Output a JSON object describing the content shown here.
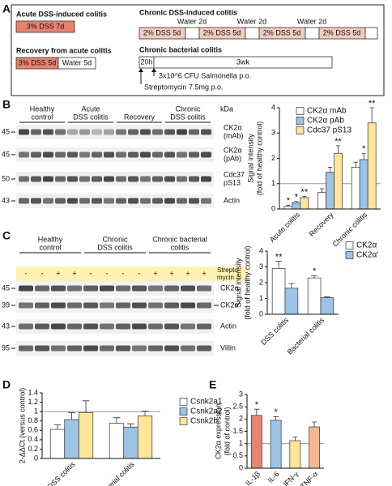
{
  "panel_labels": [
    "A",
    "B",
    "C",
    "D",
    "E"
  ],
  "schematic": {
    "acute": {
      "title": "Acute DSS-induced colitis",
      "steps": [
        "3% DSS 7d"
      ]
    },
    "recovery": {
      "title": "Recovery from acute colitis",
      "steps": [
        "3% DSS 5d",
        "Water 5d"
      ]
    },
    "chronic_dss": {
      "title": "Chronic DSS-induced colitis",
      "steps": [
        "2% DSS 5d",
        "Water 2d",
        "2% DSS 5d",
        "Water 2d",
        "2% DSS 5d",
        "Water 2d",
        "2% DSS 5d"
      ]
    },
    "bacterial": {
      "title": "Chronic bacterial colitis",
      "steps": [
        "20h",
        "3wk"
      ],
      "infection": "3x10^6 CFU Salmonella p.o.",
      "pretreatment": "Streptomycin 7.5mg p.o."
    }
  },
  "blots": [
    {
      "kda": "kDa",
      "groups": [
        [
          "Healthy",
          "control"
        ],
        [
          "Acute",
          "DSS colitis"
        ],
        [
          "Recovery"
        ],
        [
          "Chronic",
          "DSS colitis"
        ]
      ],
      "markers": [
        45,
        45,
        50,
        43
      ],
      "proteins": [
        [
          "CK2α",
          "(mAb)"
        ],
        [
          "CK2α",
          "(pAb)"
        ],
        [
          "Cdc37",
          "pS13"
        ],
        [
          "Actin"
        ]
      ]
    },
    {
      "groups": [
        [
          "Healthy",
          "control"
        ],
        [
          "Chronic",
          "DSS colitis"
        ],
        [
          "Chronic bacterial",
          "colitis"
        ]
      ],
      "treatment_label": [
        "Strepto-",
        "mycin"
      ],
      "treatment": [
        "-",
        "-",
        "+",
        "+",
        "-",
        "-",
        "-",
        "-",
        "+",
        "+",
        "+",
        "+"
      ],
      "markers": [
        45,
        39,
        43,
        95
      ],
      "proteins": [
        [
          "CK2α"
        ],
        [
          "CK2α'"
        ],
        [
          "Actin"
        ],
        [
          "Villin"
        ]
      ]
    }
  ],
  "chart_data": [
    {
      "type": "bar",
      "ylabel": [
        "Signal intensity",
        "(fold of healthy control)"
      ],
      "categories": [
        "Acute colitis",
        "Recovery",
        "Chronic colitis"
      ],
      "ylim": [
        0,
        4
      ],
      "yticks": [
        0,
        1,
        2,
        3,
        4
      ],
      "reference_line": 1,
      "series": [
        {
          "name": "CK2α mAb",
          "color": "#ffffff",
          "values": [
            0.1,
            0.65,
            1.65
          ],
          "errors": [
            0.05,
            0.15,
            0.2
          ],
          "significance": [
            "*",
            null,
            null
          ]
        },
        {
          "name": "CK2α pAb",
          "color": "#9dc3e6",
          "values": [
            0.25,
            1.45,
            1.95
          ],
          "errors": [
            0.05,
            0.2,
            0.25
          ],
          "significance": [
            "*",
            null,
            "*"
          ]
        },
        {
          "name": "Cdc37 pS13",
          "color": "#ffe699",
          "values": [
            0.45,
            2.2,
            3.4
          ],
          "errors": [
            0.05,
            0.3,
            0.6
          ],
          "significance": [
            "**",
            "**",
            "**"
          ]
        }
      ]
    },
    {
      "type": "bar",
      "ylabel": [
        "Signal intensity",
        "(fold of healthy control)"
      ],
      "categories": [
        "DSS colitis",
        "Bacterial colitis"
      ],
      "ylim": [
        0,
        4
      ],
      "yticks": [
        0,
        1,
        2,
        3,
        4
      ],
      "series": [
        {
          "name": "CK2α",
          "color": "#ffffff",
          "values": [
            2.9,
            2.3
          ],
          "errors": [
            0.45,
            0.15
          ],
          "significance": [
            "**",
            "*"
          ]
        },
        {
          "name": "CK2α'",
          "color": "#9dc3e6",
          "values": [
            1.65,
            1.05
          ],
          "errors": [
            0.3,
            0.05
          ],
          "significance": [
            null,
            null
          ]
        }
      ]
    },
    {
      "type": "bar",
      "ylabel": [
        "2-ΔΔCt (versus control)"
      ],
      "categories": [
        "DSS colitis",
        "Bacterial colitis"
      ],
      "ylim": [
        0,
        1.4
      ],
      "yticks": [
        0,
        0.2,
        0.4,
        0.6,
        0.8,
        1,
        1.2,
        1.4
      ],
      "reference_line": 1,
      "series": [
        {
          "name": "Csnk2a1",
          "color": "#ffffff",
          "values": [
            0.62,
            0.75
          ],
          "errors": [
            0.1,
            0.12
          ]
        },
        {
          "name": "Csnk2a2",
          "color": "#9dc3e6",
          "values": [
            0.83,
            0.67
          ],
          "errors": [
            0.15,
            0.07
          ]
        },
        {
          "name": "Csnk2b",
          "color": "#ffe699",
          "values": [
            0.98,
            0.91
          ],
          "errors": [
            0.25,
            0.1
          ]
        }
      ]
    },
    {
      "type": "bar",
      "ylabel": [
        "CK2α expression",
        "(fold of control)"
      ],
      "categories": [
        "IL-1β",
        "IL-6",
        "IFN-γ",
        "TNF-α"
      ],
      "values": [
        2.15,
        1.95,
        1.12,
        1.68
      ],
      "errors": [
        0.25,
        0.15,
        0.15,
        0.2
      ],
      "colors": [
        "#e8836f",
        "#9dc3e6",
        "#ffe699",
        "#f8b88b"
      ],
      "significance": [
        "*",
        "*",
        null,
        null
      ],
      "ylim": [
        0,
        3
      ],
      "yticks": [
        0,
        0.5,
        1,
        1.5,
        2,
        2.5,
        3
      ],
      "reference_line": 1
    }
  ]
}
